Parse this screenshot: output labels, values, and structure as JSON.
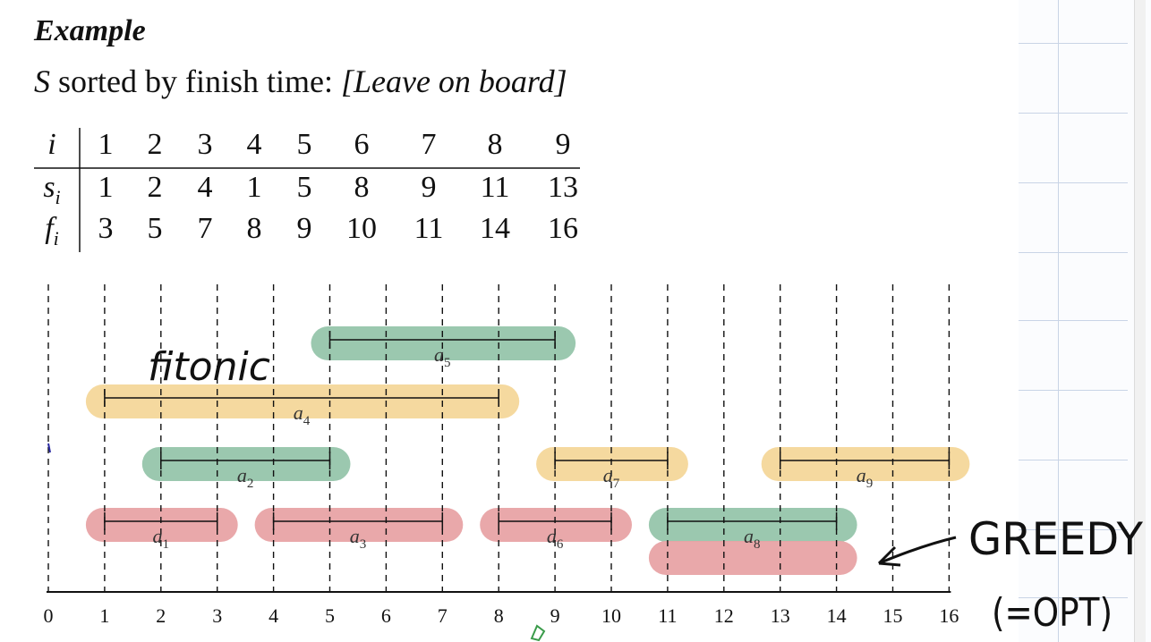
{
  "heading": "Example",
  "subtitle": {
    "var": "S",
    "text": " sorted by finish time: ",
    "note": "[Leave on board]"
  },
  "table": {
    "rows": [
      {
        "label": "i",
        "sub": "",
        "values": [
          "1",
          "2",
          "3",
          "4",
          "5",
          "6",
          "7",
          "8",
          "9"
        ]
      },
      {
        "label": "s",
        "sub": "i",
        "values": [
          "1",
          "2",
          "4",
          "1",
          "5",
          "8",
          "9",
          "11",
          "13"
        ]
      },
      {
        "label": "f",
        "sub": "i",
        "values": [
          "3",
          "5",
          "7",
          "8",
          "9",
          "10",
          "11",
          "14",
          "16"
        ]
      }
    ]
  },
  "timeline": {
    "ticks": [
      "0",
      "1",
      "2",
      "3",
      "4",
      "5",
      "6",
      "7",
      "8",
      "9",
      "10",
      "11",
      "12",
      "13",
      "14",
      "15",
      "16"
    ],
    "activities": [
      {
        "name": "a",
        "sub": "1",
        "start": 1,
        "end": 3,
        "row": 1,
        "highlight": "red"
      },
      {
        "name": "a",
        "sub": "2",
        "start": 2,
        "end": 5,
        "row": 2,
        "highlight": "green"
      },
      {
        "name": "a",
        "sub": "3",
        "start": 4,
        "end": 7,
        "row": 1,
        "highlight": "red"
      },
      {
        "name": "a",
        "sub": "4",
        "start": 1,
        "end": 8,
        "row": 3,
        "highlight": "yellow"
      },
      {
        "name": "a",
        "sub": "5",
        "start": 5,
        "end": 9,
        "row": 4,
        "highlight": "green"
      },
      {
        "name": "a",
        "sub": "6",
        "start": 8,
        "end": 10,
        "row": 1,
        "highlight": "red"
      },
      {
        "name": "a",
        "sub": "7",
        "start": 9,
        "end": 11,
        "row": 2,
        "highlight": "yellow"
      },
      {
        "name": "a",
        "sub": "8",
        "start": 11,
        "end": 14,
        "row": 1,
        "highlight": "green"
      },
      {
        "name": "a",
        "sub": "9",
        "start": 13,
        "end": 16,
        "row": 2,
        "highlight": "yellow"
      }
    ],
    "extra_strokes": [
      {
        "start": 11,
        "end": 14,
        "highlight": "red"
      }
    ]
  },
  "annotations": {
    "handwritten_top": "fitonic",
    "greedy": "GREEDY",
    "equals_opt": "(=OPT)"
  },
  "colors": {
    "red": "#e8a4a6",
    "green": "#96c6ab",
    "yellow": "#f5d79a",
    "ink": "#111111"
  }
}
